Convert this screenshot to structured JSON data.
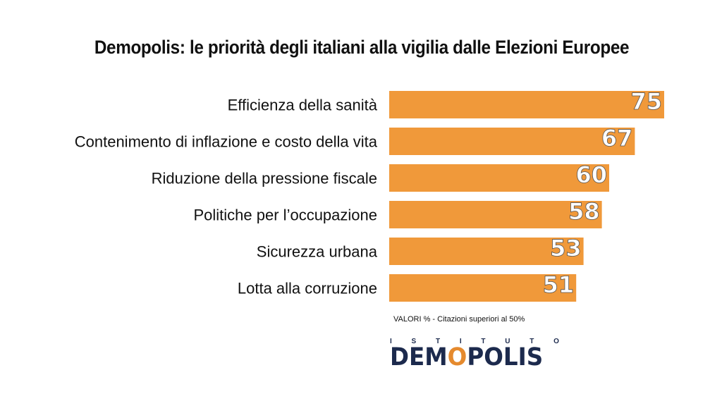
{
  "title": "Demopolis: le priorità degli italiani alla vigilia dalle Elezioni Europee",
  "note": "VALORI % - Citazioni superiori al 50%",
  "logo": {
    "top_letters": [
      "I",
      "S",
      "T",
      "I",
      "T",
      "U",
      "T",
      "O"
    ],
    "part1": "DEM",
    "o": "O",
    "part2": "POLIS"
  },
  "colors": {
    "bar": "#F0993A",
    "value_text": "#ffffff",
    "label_text": "#111111"
  },
  "chart_data": {
    "type": "bar",
    "orientation": "horizontal",
    "categories": [
      "Efficienza della sanità",
      "Contenimento di inflazione e costo della vita",
      "Riduzione della pressione fiscale",
      "Politiche per l’occupazione",
      "Sicurezza  urbana",
      "Lotta alla corruzione"
    ],
    "values": [
      75,
      67,
      60,
      58,
      53,
      51
    ],
    "xlim": [
      0,
      75
    ],
    "grid": false,
    "legend": "none",
    "data_labels": true
  }
}
